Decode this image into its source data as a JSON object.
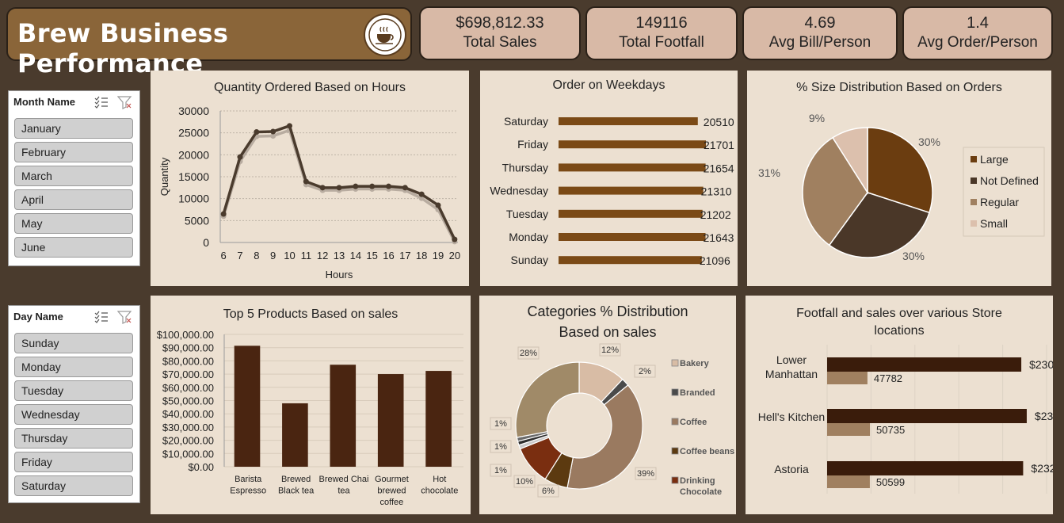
{
  "header": {
    "title": "Brew Business Performance",
    "logo_icon": "coffee-cup-icon"
  },
  "kpis": [
    {
      "value": "$698,812.33",
      "label": "Total Sales"
    },
    {
      "value": "149116",
      "label": "Total Footfall"
    },
    {
      "value": "4.69",
      "label": "Avg Bill/Person"
    },
    {
      "value": "1.4",
      "label": "Avg Order/Person"
    }
  ],
  "slicers": {
    "month": {
      "title": "Month Name",
      "items": [
        "January",
        "February",
        "March",
        "April",
        "May",
        "June"
      ]
    },
    "day": {
      "title": "Day Name",
      "items": [
        "Sunday",
        "Monday",
        "Tuesday",
        "Wednesday",
        "Thursday",
        "Friday",
        "Saturday"
      ]
    },
    "icons": [
      "multi-select-icon",
      "clear-filter-icon"
    ]
  },
  "colors": {
    "background": "#4a3b2d",
    "panel": "#ece0d1",
    "header": "#8a6539",
    "kpi": "#d8b9a6",
    "dark_brown": "#4a2511",
    "mid_brown": "#7b4a16",
    "tan": "#a08060"
  },
  "chart_data": [
    {
      "id": "hours",
      "type": "line",
      "title": "Quantity Ordered Based on Hours",
      "xlabel": "Hours",
      "ylabel": "Quantity",
      "x": [
        6,
        7,
        8,
        9,
        10,
        11,
        12,
        13,
        14,
        15,
        16,
        17,
        18,
        19,
        20
      ],
      "series": [
        {
          "values": [
            6500,
            19500,
            25200,
            25300,
            26600,
            13900,
            12500,
            12500,
            12800,
            12800,
            12800,
            12500,
            11000,
            8500,
            700
          ]
        },
        {
          "values": [
            6000,
            18500,
            24200,
            24300,
            25600,
            13200,
            11900,
            11900,
            12200,
            12200,
            12200,
            11900,
            10100,
            7500,
            200
          ]
        }
      ],
      "ylim": [
        0,
        30000
      ],
      "yticks": [
        "0",
        "5000",
        "10000",
        "15000",
        "20000",
        "25000",
        "30000"
      ],
      "grid": true
    },
    {
      "id": "weekdays",
      "type": "bar",
      "orientation": "horizontal",
      "title": "Order on Weekdays",
      "categories": [
        "Saturday",
        "Friday",
        "Thursday",
        "Wednesday",
        "Tuesday",
        "Monday",
        "Sunday"
      ],
      "values": [
        20510,
        21701,
        21654,
        21310,
        21202,
        21643,
        21096
      ],
      "labels": [
        "20510",
        "21701",
        "21654",
        "21310",
        "21202",
        "21643",
        "21096"
      ]
    },
    {
      "id": "size",
      "type": "pie",
      "title": "% Size Distribution Based  on Orders",
      "categories": [
        "Large",
        "Not Defined",
        "Regular",
        "Small"
      ],
      "values": [
        30,
        30,
        31,
        9
      ],
      "labels": [
        "30%",
        "30%",
        "31%",
        "9%"
      ],
      "colors": [
        "#6b3d10",
        "#4a3728",
        "#a08060",
        "#dcc0ad"
      ],
      "legend": "right"
    },
    {
      "id": "products",
      "type": "bar",
      "title": "Top  5  Products Based on sales",
      "categories": [
        "Barista Espresso",
        "Brewed Black tea",
        "Brewed Chai tea",
        "Gourmet brewed coffee",
        "Hot chocolate"
      ],
      "values": [
        91406,
        47932,
        77082,
        70034,
        72416
      ],
      "ylim": [
        0,
        100000
      ],
      "yticks": [
        "$0.00",
        "$10,000.00",
        "$20,000.00",
        "$30,000.00",
        "$40,000.00",
        "$50,000.00",
        "$60,000.00",
        "$70,000.00",
        "$80,000.00",
        "$90,000.00",
        "$100,000.00"
      ],
      "grid": true
    },
    {
      "id": "categories",
      "type": "pie",
      "subtype": "donut",
      "title": "Categories % Distribution Based on sales",
      "categories": [
        "Bakery",
        "Branded",
        "Coffee",
        "Coffee beans",
        "Drinking Chocolate",
        "Flavours",
        "Loose Tea",
        "Packaged Chocolate",
        "Tea"
      ],
      "values": [
        12,
        2,
        39,
        6,
        10,
        1,
        1,
        1,
        28
      ],
      "labels": [
        "12%",
        "2%",
        "39%",
        "6%",
        "10%",
        "1%",
        "1%",
        "1%",
        "28%"
      ],
      "colors": [
        "#d8bca5",
        "#4a4a4a",
        "#9a7a60",
        "#5c3a10",
        "#7a2e10",
        "#c9c9c9",
        "#2e2e2e",
        "#6a6a6a",
        "#a08a68"
      ],
      "legend_visible": [
        "Bakery",
        "Branded",
        "Coffee",
        "Coffee beans",
        "Drinking Chocolate"
      ]
    },
    {
      "id": "stores",
      "type": "bar",
      "orientation": "horizontal",
      "title": "Footfall and sales over various Store locations",
      "categories": [
        "Lower Manhattan",
        "Hell's Kitchen",
        "Astoria"
      ],
      "series": [
        {
          "values": [
            230057.25,
            236511.17,
            232243.91
          ],
          "labels": [
            "$230,057.25",
            "$236,511.17",
            "$232,243.91"
          ]
        },
        {
          "values": [
            47782,
            50735,
            50599
          ],
          "labels": [
            "47782",
            "50735",
            "50599"
          ]
        }
      ]
    }
  ]
}
